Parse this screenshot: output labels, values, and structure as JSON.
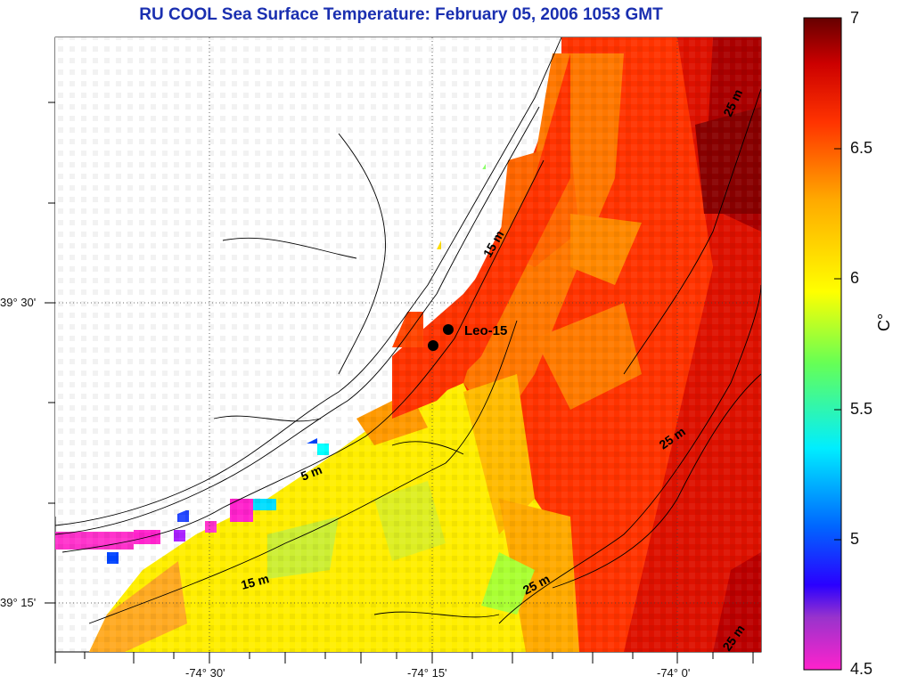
{
  "title": "RU COOL  Sea Surface Temperature:  February 05, 2006 1053 GMT",
  "map": {
    "x_ticks": [
      "-74° 30'",
      "-74° 15'",
      "-74° 0'"
    ],
    "y_ticks": [
      "39° 30'",
      "39° 15'"
    ],
    "station_label": "Leo-15",
    "contour_labels": [
      "25 m",
      "15 m",
      "5 m",
      "15 m",
      "25 m",
      "25 m",
      "25 m"
    ]
  },
  "colorbar": {
    "unit": "C°",
    "labels": [
      "7",
      "6.5",
      "6",
      "5.5",
      "5",
      "4.5"
    ],
    "range": [
      4.5,
      7
    ],
    "colors": [
      "#ff22cc",
      "#7722bb",
      "#0000ff",
      "#00bbff",
      "#00ffff",
      "#55ff66",
      "#ddff00",
      "#ffff00",
      "#ffaa00",
      "#ff6600",
      "#ee1100",
      "#990000",
      "#6a0000"
    ]
  }
}
